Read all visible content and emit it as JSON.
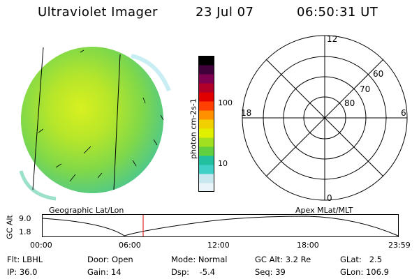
{
  "header": {
    "instrument": "Ultraviolet Imager",
    "date": "23 Jul 07",
    "time": "06:50:31 UT"
  },
  "colorbar": {
    "unit_label": "photon cm-2s-1",
    "ticks": [
      "100",
      "10"
    ],
    "colors": [
      "#e8f4f8",
      "#c8e8f0",
      "#40d0c8",
      "#20c0a0",
      "#60d040",
      "#a0e020",
      "#e0f000",
      "#f0d000",
      "#ff9000",
      "#ff4000",
      "#e00000",
      "#b0002a",
      "#800050",
      "#40003a",
      "#000000"
    ]
  },
  "polar": {
    "clock_labels": {
      "top": "12",
      "left": "18",
      "right": "6",
      "bottom": "0"
    },
    "lat_labels": [
      "60",
      "70",
      "80"
    ]
  },
  "map_labels": {
    "left": "Geographic Lat/Lon",
    "right": "Apex MLat/MLT"
  },
  "timeline": {
    "ylabel": "GC Alt",
    "y_ticks": [
      "9.0",
      "1.8"
    ],
    "x_ticks": [
      "00:00",
      "06:00",
      "12:00",
      "18:00",
      "23:59"
    ]
  },
  "status": {
    "row1": {
      "flt": "Flt: LBHL",
      "door": "Door: Open",
      "mode": "Mode: Normal",
      "gcalt": "GC Alt: 3.2 Re",
      "glat": "GLat:   2.5"
    },
    "row2": {
      "ip": "IP: 36.0",
      "gain": "Gain: 14",
      "dsp": "Dsp:    -5.4",
      "seq": "Seq: 39",
      "glon": "GLon: 106.9"
    }
  }
}
